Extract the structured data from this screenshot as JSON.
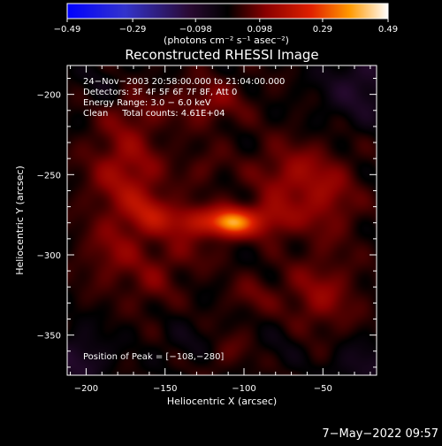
{
  "chart_data": {
    "type": "heatmap",
    "title": "Reconstructed RHESSI Image",
    "xlabel": "Heliocentric X (arcsec)",
    "ylabel": "Heliocentric Y (arcsec)",
    "xlim": [
      -212,
      -16
    ],
    "ylim": [
      -375,
      -182
    ],
    "x_ticks": [
      -200,
      -150,
      -100,
      -50
    ],
    "y_ticks": [
      -200,
      -250,
      -300,
      -350
    ],
    "x_tick_labels": [
      "−200",
      "−150",
      "−100",
      "−50"
    ],
    "y_tick_labels": [
      "−200",
      "−250",
      "−300",
      "−350"
    ],
    "colorbar": {
      "ticks": [
        -0.49,
        -0.29,
        -0.098,
        0.098,
        0.29,
        0.49
      ],
      "tick_labels": [
        "−0.49",
        "−0.29",
        "−0.098",
        "0.098",
        "0.29",
        "0.49"
      ],
      "label": "(photons cm⁻² s⁻¹ asec⁻²)",
      "range": [
        -0.49,
        0.49
      ]
    },
    "info_lines": [
      "24−Nov−2003 20:58:00.000 to 21:04:00.000",
      "Detectors: 3F 4F 5F 6F 7F 8F, Att 0",
      "Energy Range: 3.0 − 6.0 keV",
      "Clean     Total counts: 4.61E+04"
    ],
    "peak_label": "Position of Peak = [−108,−280]",
    "peak": [
      -108,
      -280
    ],
    "blobs": [
      {
        "x": -108,
        "y": -280,
        "sx": 9,
        "sy": 6,
        "a": 0.32
      },
      {
        "x": -132,
        "y": -279,
        "sx": 14,
        "sy": 7,
        "a": 0.16
      },
      {
        "x": -85,
        "y": -278,
        "sx": 12,
        "sy": 8,
        "a": 0.14
      },
      {
        "x": -160,
        "y": -274,
        "sx": 10,
        "sy": 9,
        "a": 0.11
      },
      {
        "x": -175,
        "y": -250,
        "sx": 16,
        "sy": 22,
        "a": 0.13
      },
      {
        "x": -182,
        "y": -300,
        "sx": 14,
        "sy": 14,
        "a": 0.08
      },
      {
        "x": -158,
        "y": -320,
        "sx": 10,
        "sy": 10,
        "a": 0.06
      },
      {
        "x": -140,
        "y": -300,
        "sx": 14,
        "sy": 9,
        "a": 0.06
      },
      {
        "x": -72,
        "y": -250,
        "sx": 16,
        "sy": 14,
        "a": 0.1
      },
      {
        "x": -48,
        "y": -265,
        "sx": 14,
        "sy": 18,
        "a": 0.1
      },
      {
        "x": -52,
        "y": -325,
        "sx": 16,
        "sy": 16,
        "a": 0.1
      },
      {
        "x": -95,
        "y": -325,
        "sx": 10,
        "sy": 8,
        "a": 0.06
      },
      {
        "x": -122,
        "y": -205,
        "sx": 16,
        "sy": 10,
        "a": 0.09
      },
      {
        "x": -170,
        "y": -210,
        "sx": 14,
        "sy": 10,
        "a": 0.05
      },
      {
        "x": -110,
        "y": -360,
        "sx": 10,
        "sy": 8,
        "a": 0.05
      },
      {
        "x": -125,
        "y": -245,
        "sx": 10,
        "sy": 8,
        "a": 0.05
      },
      {
        "x": -205,
        "y": -365,
        "sx": 14,
        "sy": 12,
        "a": -0.1
      },
      {
        "x": -25,
        "y": -195,
        "sx": 18,
        "sy": 16,
        "a": -0.1
      },
      {
        "x": -25,
        "y": -370,
        "sx": 14,
        "sy": 10,
        "a": -0.08
      },
      {
        "x": -190,
        "y": -195,
        "sx": 10,
        "sy": 10,
        "a": -0.04
      },
      {
        "x": -135,
        "y": -355,
        "sx": 12,
        "sy": 8,
        "a": -0.04
      },
      {
        "x": -75,
        "y": -355,
        "sx": 10,
        "sy": 10,
        "a": -0.03
      }
    ],
    "background": 0.015,
    "grid": false
  },
  "footer": {
    "date": "7−May−2022 09:57"
  }
}
